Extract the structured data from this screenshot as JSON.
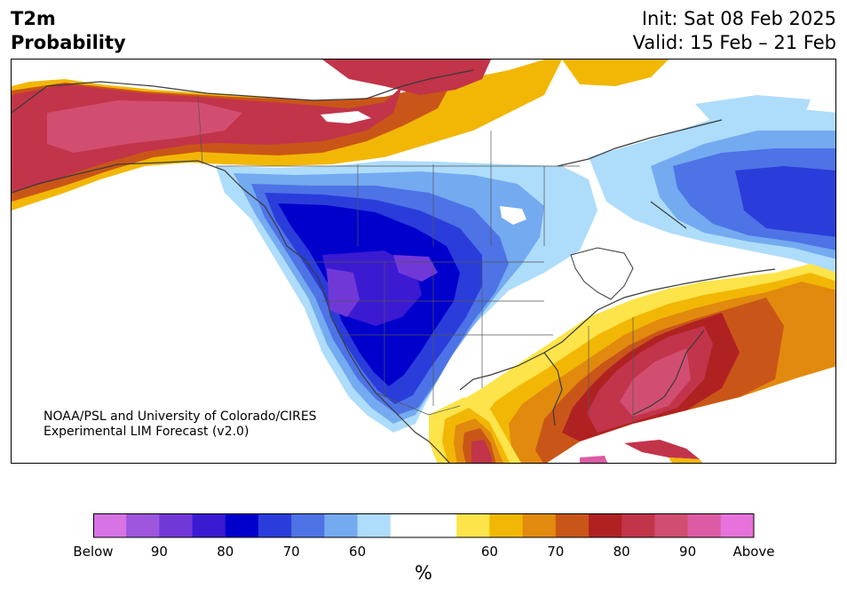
{
  "header": {
    "title_line1": "T2m",
    "title_line2": "Probability",
    "init": "Init: Sat 08 Feb 2025",
    "valid": "Valid: 15 Feb – 21 Feb"
  },
  "credit": {
    "line1": "NOAA/PSL and University of Colorado/CIRES",
    "line2": "Experimental LIM Forecast (v2.0)"
  },
  "colorbar": {
    "unit": "%",
    "colors": [
      "#d873e6",
      "#9d56dd",
      "#7138d8",
      "#3b1ad2",
      "#0000cd",
      "#2a3ddb",
      "#4d73e6",
      "#74aaf0",
      "#aedcfb",
      "#ffffff",
      "#ffffff",
      "#fde44a",
      "#f2b705",
      "#e18a0e",
      "#c95618",
      "#b02222",
      "#c2344a",
      "#d14e70",
      "#db5ca4",
      "#e672dc"
    ],
    "ticks": [
      "Below",
      "90",
      "80",
      "70",
      "60",
      "60",
      "70",
      "80",
      "90",
      "Above"
    ]
  },
  "palette": {
    "below_90": "#7138d8",
    "below_80": "#0000cd",
    "below_70": "#4d73e6",
    "below_60": "#aedcfb",
    "above_60": "#fde44a",
    "above_65": "#f2b705",
    "above_70": "#e18a0e",
    "above_75": "#c95618",
    "above_80": "#b02222",
    "above_85": "#c2344a",
    "above_90": "#d14e70",
    "above_95": "#db5ca4",
    "outline": "#3a3a3a"
  }
}
